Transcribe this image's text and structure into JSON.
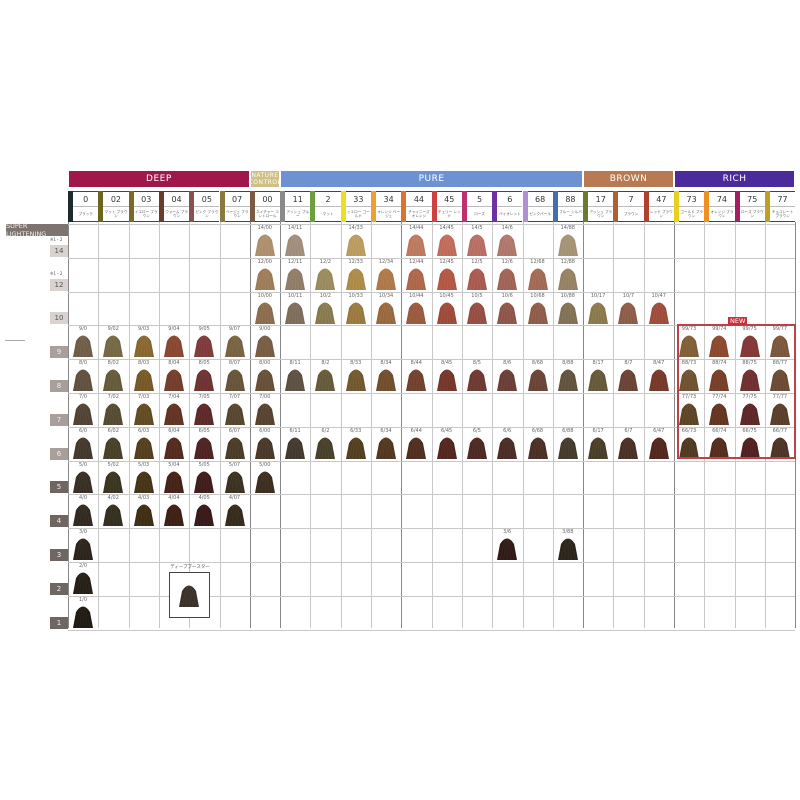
{
  "groups": [
    {
      "name": "DEEP",
      "color": "#a0184a",
      "from": 0,
      "to": 5
    },
    {
      "name": "NATURE CONTROL",
      "color": "#cfc08a",
      "from": 6,
      "to": 6
    },
    {
      "name": "PURE",
      "color": "#6d92d2",
      "from": 7,
      "to": 16
    },
    {
      "name": "BROWN",
      "color": "#b77a52",
      "from": 17,
      "to": 19
    },
    {
      "name": "RICH",
      "color": "#4b2b9c",
      "from": 20,
      "to": 23
    }
  ],
  "columns": [
    {
      "id": "0",
      "sub": "ブラック",
      "stripe": "#1f2a2e",
      "tone": "#6b5a48"
    },
    {
      "id": "02",
      "sub": "マット ブラウン",
      "stripe": "#6b6520",
      "tone": "#6b6040"
    },
    {
      "id": "03",
      "sub": "イエロー ブラウン",
      "stripe": "#7a6a25",
      "tone": "#8a6a35"
    },
    {
      "id": "04",
      "sub": "ウォーム ブラウン",
      "stripe": "#6b3a2a",
      "tone": "#8a4a35"
    },
    {
      "id": "05",
      "sub": "ピンク ブラウン",
      "stripe": "#8a5050",
      "tone": "#7a3a3a"
    },
    {
      "id": "07",
      "sub": "ベージュ ブラウン",
      "stripe": "#8a7a40",
      "tone": "#7a6545"
    },
    {
      "id": "00",
      "sub": "ネイチャー コントロール",
      "stripe": "#7a5a40",
      "tone": "#7a6045"
    },
    {
      "id": "11",
      "sub": "アッシュ ブルー",
      "stripe": "#8a8a8a",
      "tone": "#7a6a58"
    },
    {
      "id": "2",
      "sub": "マット",
      "stripe": "#6aa040",
      "tone": "#6a6040"
    },
    {
      "id": "33",
      "sub": "イエロー ゴールド",
      "stripe": "#e8e020",
      "tone": "#9a7a40"
    },
    {
      "id": "34",
      "sub": "オレンジ ベージュ",
      "stripe": "#f0a030",
      "tone": "#9a6a40"
    },
    {
      "id": "44",
      "sub": "チャイニーズ オレンジ",
      "stripe": "#e07030",
      "tone": "#9a5a40"
    },
    {
      "id": "45",
      "sub": "チェリー レッド",
      "stripe": "#d04040",
      "tone": "#9a4a3a"
    },
    {
      "id": "5",
      "sub": "ローズ",
      "stripe": "#c0306a",
      "tone": "#8a4a40"
    },
    {
      "id": "6",
      "sub": "バイオレット",
      "stripe": "#7030a0",
      "tone": "#7a4a40"
    },
    {
      "id": "68",
      "sub": "ピンクパール",
      "stripe": "#b090d0",
      "tone": "#8a5a48"
    },
    {
      "id": "88",
      "sub": "ブルー シルバー",
      "stripe": "#4070b0",
      "tone": "#7a6a50"
    },
    {
      "id": "17",
      "sub": "アッシュ ブラウン",
      "stripe": "#6a7a30",
      "tone": "#7a6a45"
    },
    {
      "id": "7",
      "sub": "ブラウン",
      "stripe": "#b06030",
      "tone": "#7a5040"
    },
    {
      "id": "47",
      "sub": "レッド ブラウン",
      "stripe": "#b04030",
      "tone": "#8a4535"
    },
    {
      "id": "73",
      "sub": "ゴールド ブラウン",
      "stripe": "#e8d020",
      "tone": "#7a5a35"
    },
    {
      "id": "74",
      "sub": "オレンジ ブラウン",
      "stripe": "#f09020",
      "tone": "#8a4a30"
    },
    {
      "id": "75",
      "sub": "ローズ ブラウン",
      "stripe": "#a02060",
      "tone": "#7a3535"
    },
    {
      "id": "77",
      "sub": "チョコレート ブラウン",
      "stripe": "#c0a020",
      "tone": "#6a4a35"
    }
  ],
  "super_lightening_label": "SUPER LIGHTENING",
  "rows": [
    {
      "level": "14",
      "note": "※1・2",
      "swatches": [
        "14/00",
        "14/11",
        "14/33",
        "14/44",
        "14/45",
        "14/5",
        "14/6",
        "14/88"
      ]
    },
    {
      "level": "12",
      "note": "※1・2",
      "swatches": [
        "12/00",
        "12/11",
        "12/2",
        "12/33",
        "12/34",
        "12/44",
        "12/45",
        "12/5",
        "12/6",
        "12/68",
        "12/88"
      ]
    },
    {
      "level": "10",
      "swatches": [
        "10/00",
        "10/11",
        "10/2",
        "10/33",
        "10/34",
        "10/44",
        "10/45",
        "10/5",
        "10/6",
        "10/68",
        "10/88",
        "10/17",
        "10/7",
        "10/47"
      ]
    },
    {
      "level": "9",
      "swatches": [
        "9/0",
        "9/02",
        "9/03",
        "9/04",
        "9/05",
        "9/07",
        "9/00",
        "99/73",
        "99/74",
        "99/75",
        "99/77"
      ]
    },
    {
      "level": "8",
      "swatches": [
        "8/0",
        "8/02",
        "8/03",
        "8/04",
        "8/05",
        "8/07",
        "8/00",
        "8/11",
        "8/2",
        "8/33",
        "8/34",
        "8/44",
        "8/45",
        "8/5",
        "8/6",
        "8/68",
        "8/88",
        "8/17",
        "8/7",
        "8/47",
        "88/73",
        "88/74",
        "88/75",
        "88/77"
      ]
    },
    {
      "level": "7",
      "swatches": [
        "7/0",
        "7/02",
        "7/03",
        "7/04",
        "7/05",
        "7/07",
        "7/00",
        "77/73",
        "77/74",
        "77/75",
        "77/77"
      ]
    },
    {
      "level": "6",
      "swatches": [
        "6/0",
        "6/02",
        "6/03",
        "6/04",
        "6/05",
        "6/07",
        "6/00",
        "6/11",
        "6/2",
        "6/33",
        "6/34",
        "6/44",
        "6/45",
        "6/5",
        "6/6",
        "6/68",
        "6/88",
        "6/17",
        "6/7",
        "6/47",
        "66/73",
        "66/74",
        "66/75",
        "66/77"
      ]
    },
    {
      "level": "5",
      "swatches": [
        "5/0",
        "5/02",
        "5/03",
        "5/04",
        "5/05",
        "5/07",
        "5/00"
      ]
    },
    {
      "level": "4",
      "swatches": [
        "4/0",
        "4/02",
        "4/03",
        "4/04",
        "4/05",
        "4/07"
      ]
    },
    {
      "level": "3",
      "swatches": [
        "3/0",
        "3/6",
        "3/88"
      ]
    },
    {
      "level": "2",
      "swatches": [
        "2/0"
      ]
    },
    {
      "level": "1",
      "swatches": [
        "1/0"
      ]
    }
  ],
  "new_badge": "NEW",
  "deep_booster": {
    "label": "ディープブースター",
    "tone": "#4a3e36"
  }
}
